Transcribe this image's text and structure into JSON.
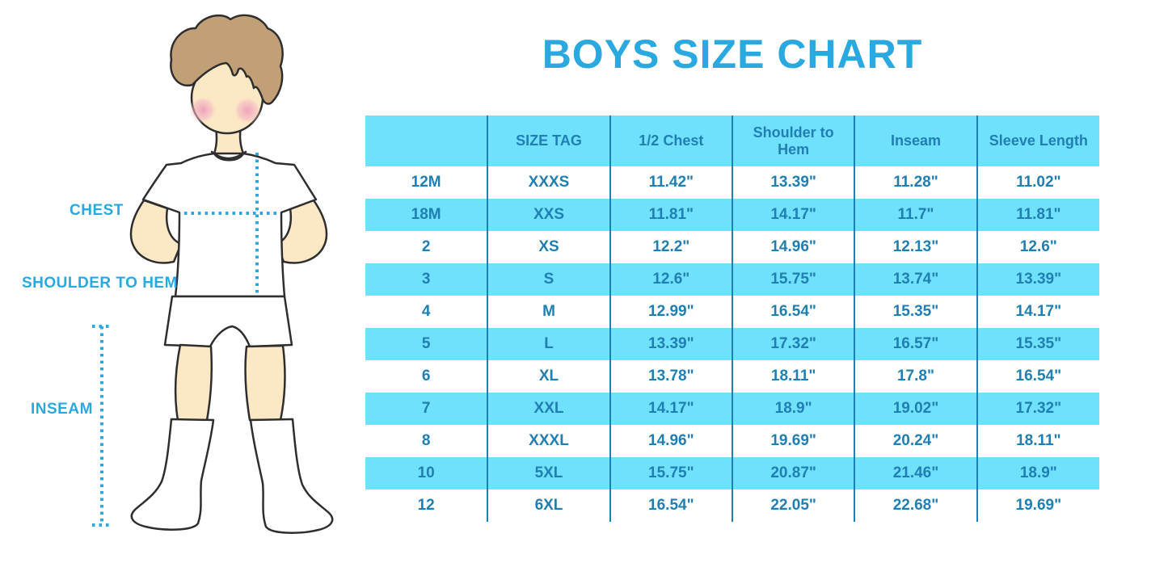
{
  "title": "BOYS SIZE CHART",
  "figure_labels": {
    "chest": "CHEST",
    "shoulder_to_hem": "SHOULDER TO HEM",
    "inseam": "INSEAM"
  },
  "colors": {
    "accent_blue": "#29A9E0",
    "table_text": "#1F7FB3",
    "row_fill": "#70E1FD",
    "grid_line": "#1B81B3",
    "skin": "#FCE8C4",
    "hair": "#C2A077",
    "blush": "#F0ABBE",
    "outline": "#2E2E2E"
  },
  "chart_data": {
    "type": "table",
    "title": "BOYS SIZE CHART",
    "columns": [
      "",
      "SIZE TAG",
      "1/2 Chest",
      "Shoulder to Hem",
      "Inseam",
      "Sleeve Length"
    ],
    "rows": [
      [
        "12M",
        "XXXS",
        "11.42\"",
        "13.39\"",
        "11.28\"",
        "11.02\""
      ],
      [
        "18M",
        "XXS",
        "11.81\"",
        "14.17\"",
        "11.7\"",
        "11.81\""
      ],
      [
        "2",
        "XS",
        "12.2\"",
        "14.96\"",
        "12.13\"",
        "12.6\""
      ],
      [
        "3",
        "S",
        "12.6\"",
        "15.75\"",
        "13.74\"",
        "13.39\""
      ],
      [
        "4",
        "M",
        "12.99\"",
        "16.54\"",
        "15.35\"",
        "14.17\""
      ],
      [
        "5",
        "L",
        "13.39\"",
        "17.32\"",
        "16.57\"",
        "15.35\""
      ],
      [
        "6",
        "XL",
        "13.78\"",
        "18.11\"",
        "17.8\"",
        "16.54\""
      ],
      [
        "7",
        "XXL",
        "14.17\"",
        "18.9\"",
        "19.02\"",
        "17.32\""
      ],
      [
        "8",
        "XXXL",
        "14.96\"",
        "19.69\"",
        "20.24\"",
        "18.11\""
      ],
      [
        "10",
        "5XL",
        "15.75\"",
        "20.87\"",
        "21.46\"",
        "18.9\""
      ],
      [
        "12",
        "6XL",
        "16.54\"",
        "22.05\"",
        "22.68\"",
        "19.69\""
      ]
    ]
  }
}
